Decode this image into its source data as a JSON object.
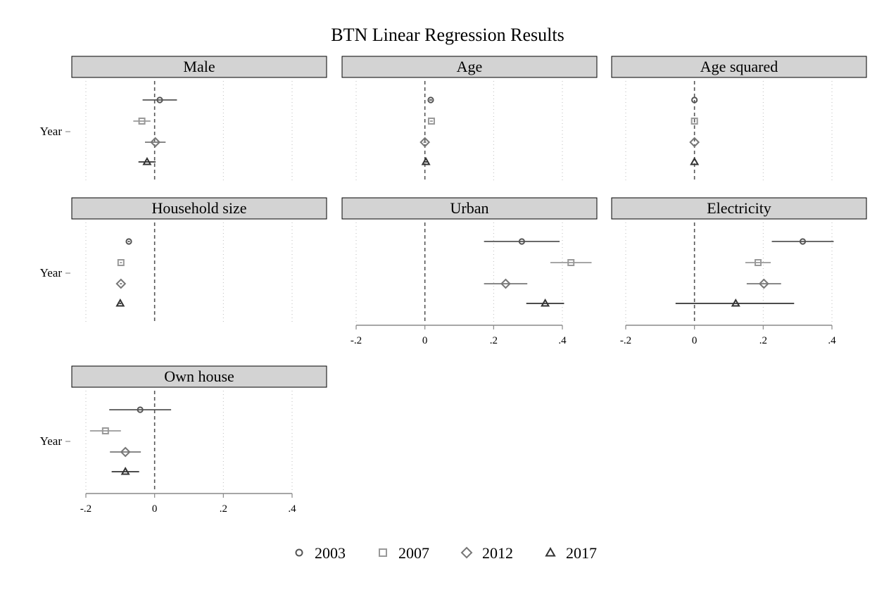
{
  "chart_data": {
    "type": "scatter",
    "subtype": "coefficient plot with confidence intervals (small multiples)",
    "title": "BTN Linear Regression Results",
    "y_category_label": "Year",
    "x_ticks": [
      -0.2,
      0,
      0.2,
      0.4
    ],
    "x_tick_labels": [
      "-.2",
      "0",
      ".2",
      ".4"
    ],
    "xlim": [
      -0.2,
      0.4
    ],
    "reference_line": 0,
    "grid": "vertical dotted",
    "legend_position": "bottom",
    "series_style": {
      "2003": {
        "marker": "circle",
        "color": "#555555"
      },
      "2007": {
        "marker": "square",
        "color": "#999999"
      },
      "2012": {
        "marker": "diamond",
        "color": "#777777"
      },
      "2017": {
        "marker": "triangle",
        "color": "#333333"
      }
    },
    "legend": [
      "2003",
      "2007",
      "2012",
      "2017"
    ],
    "panels": [
      {
        "title": "Male",
        "show_x_axis": false,
        "estimates": [
          {
            "year": "2003",
            "coef": 0.015,
            "lo": -0.035,
            "hi": 0.065
          },
          {
            "year": "2007",
            "coef": -0.037,
            "lo": -0.062,
            "hi": -0.012
          },
          {
            "year": "2012",
            "coef": 0.002,
            "lo": -0.028,
            "hi": 0.032
          },
          {
            "year": "2017",
            "coef": -0.022,
            "lo": -0.047,
            "hi": 0.003
          }
        ]
      },
      {
        "title": "Age",
        "show_x_axis": false,
        "estimates": [
          {
            "year": "2003",
            "coef": 0.017,
            "lo": 0.013,
            "hi": 0.021
          },
          {
            "year": "2007",
            "coef": 0.019,
            "lo": 0.015,
            "hi": 0.023
          },
          {
            "year": "2012",
            "coef": 0.0,
            "lo": -0.004,
            "hi": 0.004
          },
          {
            "year": "2017",
            "coef": 0.003,
            "lo": -0.001,
            "hi": 0.007
          }
        ]
      },
      {
        "title": "Age squared",
        "show_x_axis": false,
        "estimates": [
          {
            "year": "2003",
            "coef": 0.0,
            "lo": 0.0,
            "hi": 0.0
          },
          {
            "year": "2007",
            "coef": 0.0,
            "lo": 0.0,
            "hi": 0.0
          },
          {
            "year": "2012",
            "coef": 0.0,
            "lo": 0.0,
            "hi": 0.0
          },
          {
            "year": "2017",
            "coef": 0.0,
            "lo": 0.0,
            "hi": 0.0
          }
        ]
      },
      {
        "title": "Household size",
        "show_x_axis": false,
        "estimates": [
          {
            "year": "2003",
            "coef": -0.075,
            "lo": -0.078,
            "hi": -0.072
          },
          {
            "year": "2007",
            "coef": -0.098,
            "lo": -0.101,
            "hi": -0.095
          },
          {
            "year": "2012",
            "coef": -0.098,
            "lo": -0.101,
            "hi": -0.095
          },
          {
            "year": "2017",
            "coef": -0.1,
            "lo": -0.103,
            "hi": -0.097
          }
        ]
      },
      {
        "title": "Urban",
        "show_x_axis": true,
        "estimates": [
          {
            "year": "2003",
            "coef": 0.282,
            "lo": 0.172,
            "hi": 0.392
          },
          {
            "year": "2007",
            "coef": 0.425,
            "lo": 0.365,
            "hi": 0.485
          },
          {
            "year": "2012",
            "coef": 0.235,
            "lo": 0.172,
            "hi": 0.298
          },
          {
            "year": "2017",
            "coef": 0.35,
            "lo": 0.295,
            "hi": 0.405
          }
        ]
      },
      {
        "title": "Electricity",
        "show_x_axis": true,
        "estimates": [
          {
            "year": "2003",
            "coef": 0.315,
            "lo": 0.225,
            "hi": 0.405
          },
          {
            "year": "2007",
            "coef": 0.185,
            "lo": 0.148,
            "hi": 0.222
          },
          {
            "year": "2012",
            "coef": 0.202,
            "lo": 0.152,
            "hi": 0.252
          },
          {
            "year": "2017",
            "coef": 0.12,
            "lo": -0.055,
            "hi": 0.29
          }
        ]
      },
      {
        "title": "Own house",
        "show_x_axis": true,
        "estimates": [
          {
            "year": "2003",
            "coef": -0.042,
            "lo": -0.132,
            "hi": 0.048
          },
          {
            "year": "2007",
            "coef": -0.143,
            "lo": -0.188,
            "hi": -0.098
          },
          {
            "year": "2012",
            "coef": -0.085,
            "lo": -0.13,
            "hi": -0.04
          },
          {
            "year": "2017",
            "coef": -0.085,
            "lo": -0.125,
            "hi": -0.045
          }
        ]
      }
    ]
  }
}
